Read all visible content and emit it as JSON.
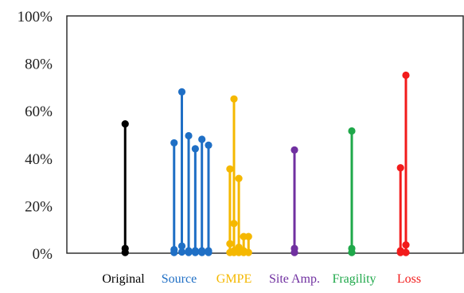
{
  "chart_data": {
    "type": "scatter",
    "ylim": [
      0,
      100
    ],
    "yticks": [
      "0%",
      "20%",
      "40%",
      "60%",
      "80%",
      "100%"
    ],
    "y_tick_values": [
      0,
      20,
      40,
      60,
      80,
      100
    ],
    "grid": false,
    "categories": [
      {
        "label": "Original",
        "color": "#000000"
      },
      {
        "label": "Source",
        "color": "#1F6FC5"
      },
      {
        "label": "GMPE",
        "color": "#F5B800"
      },
      {
        "label": "Site Amp.",
        "color": "#7030A0"
      },
      {
        "label": "Fragility",
        "color": "#1FA84A"
      },
      {
        "label": "Loss",
        "color": "#F21B1B"
      }
    ],
    "stems": [
      {
        "category": "Original",
        "x": 0.03,
        "values": [
          54.5,
          2.0,
          0.3
        ]
      },
      {
        "category": "Source",
        "x": 0.85,
        "values": [
          46.5,
          1.5,
          0.3
        ]
      },
      {
        "category": "Source",
        "x": 0.98,
        "values": [
          68.0,
          3.0,
          0.5
        ]
      },
      {
        "category": "Source",
        "x": 1.11,
        "values": [
          49.5,
          1.0,
          0.3
        ]
      },
      {
        "category": "Source",
        "x": 1.24,
        "values": [
          44.0,
          1.0,
          0.3
        ]
      },
      {
        "category": "Source",
        "x": 1.37,
        "values": [
          48.0,
          1.0,
          0.3
        ]
      },
      {
        "category": "Source",
        "x": 1.5,
        "values": [
          45.5,
          1.0,
          0.3
        ]
      },
      {
        "category": "GMPE",
        "x": 1.92,
        "values": [
          35.5,
          4.0,
          0.3
        ]
      },
      {
        "category": "GMPE",
        "x": 2.0,
        "values": [
          65.0,
          12.5,
          1.0,
          0.3
        ]
      },
      {
        "category": "GMPE",
        "x": 2.08,
        "values": [
          31.5,
          2.5,
          0.3
        ]
      },
      {
        "category": "GMPE",
        "x": 2.16,
        "values": [
          7.0,
          1.0,
          0.3
        ]
      },
      {
        "category": "GMPE",
        "x": 2.24,
        "values": [
          7.0,
          0.3
        ]
      },
      {
        "category": "Site Amp.",
        "x": 3.0,
        "values": [
          43.5,
          2.0,
          0.3
        ]
      },
      {
        "category": "Fragility",
        "x": 4.0,
        "values": [
          51.5,
          2.0,
          0.3
        ]
      },
      {
        "category": "Loss",
        "x": 4.9,
        "values": [
          36.0,
          1.0,
          0.3
        ]
      },
      {
        "category": "Loss",
        "x": 5.0,
        "values": [
          75.0,
          3.5,
          0.3
        ]
      }
    ]
  }
}
